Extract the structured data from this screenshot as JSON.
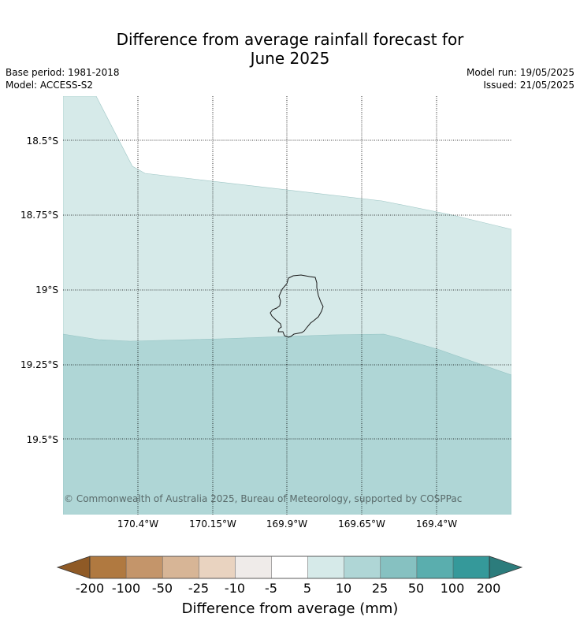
{
  "title_line1": "Difference from average rainfall forecast for",
  "title_line2": "June 2025",
  "base_period": "Base period: 1981-2018",
  "model": "Model: ACCESS-S2",
  "model_run": "Model run: 19/05/2025",
  "issued": "Issued: 21/05/2025",
  "latitude_labels": [
    "18.5°S",
    "18.75°S",
    "19°S",
    "19.25°S",
    "19.5°S"
  ],
  "longitude_labels": [
    "170.4°W",
    "170.15°W",
    "169.9°W",
    "169.65°W",
    "169.4°W"
  ],
  "map_region": "Niue",
  "category_colors": {
    "5 to 10": "#d6eae9",
    "10 to 25": "#afd6d6"
  },
  "copyright": "© Commonwealth of Australia 2025, Bureau of Meteorology, supported by COSPPac",
  "colorbar": {
    "label": "Difference from average (mm)",
    "ticks": [
      "-200",
      "-100",
      "-50",
      "-25",
      "-10",
      "-5",
      "5",
      "10",
      "25",
      "50",
      "100",
      "200"
    ],
    "colors": [
      "#8f5a26",
      "#b07940",
      "#c4956a",
      "#d7b596",
      "#e9d3c0",
      "#efebe9",
      "#ffffff",
      "#d6eae9",
      "#afd6d6",
      "#86c1c1",
      "#5aaeae",
      "#35999a",
      "#2c7c7c"
    ]
  }
}
